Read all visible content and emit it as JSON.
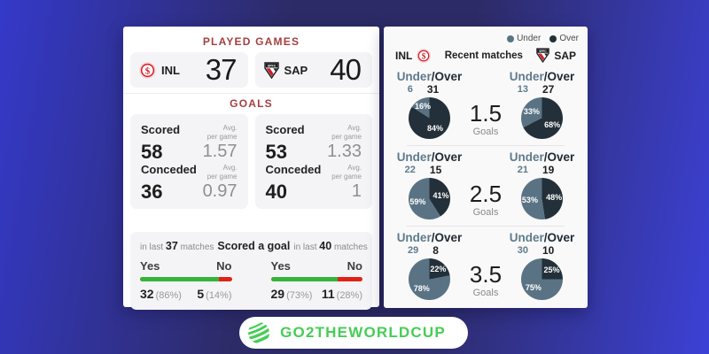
{
  "theme": {
    "under_color": "#5a7384",
    "over_color": "#233039",
    "yes_color": "#34b43a",
    "no_color": "#df2318",
    "accent_red": "#a43f3f",
    "brand_green": "#46cd55"
  },
  "left_card": {
    "played_games": {
      "title": "PLAYED GAMES",
      "teams": [
        {
          "abbr": "INL",
          "value": "37"
        },
        {
          "abbr": "SAP",
          "value": "40"
        }
      ]
    },
    "goals": {
      "title": "GOALS",
      "avg_line1": "Avg.",
      "avg_line2": "per game",
      "boxes": [
        {
          "scored_label": "Scored",
          "scored_value": "58",
          "scored_avg": "1.57",
          "conceded_label": "Conceded",
          "conceded_value": "36",
          "conceded_avg": "0.97"
        },
        {
          "scored_label": "Scored",
          "scored_value": "53",
          "scored_avg": "1.33",
          "conceded_label": "Conceded",
          "conceded_value": "40",
          "conceded_avg": "1"
        }
      ]
    },
    "scored_goal": {
      "title": "Scored a goal",
      "left_caption": {
        "prefix": "in last",
        "count": "37",
        "suffix": "matches"
      },
      "right_caption": {
        "prefix": "in last",
        "count": "40",
        "suffix": "matches"
      },
      "yes_label": "Yes",
      "no_label": "No",
      "cols": [
        {
          "yes_value": "32",
          "yes_pct": "(86%)",
          "no_value": "5",
          "no_pct": "(14%)",
          "yes_ratio": 86
        },
        {
          "yes_value": "29",
          "yes_pct": "(73%)",
          "no_value": "11",
          "no_pct": "(28%)",
          "yes_ratio": 73
        }
      ]
    }
  },
  "right_card": {
    "legend": {
      "under": "Under",
      "over": "Over"
    },
    "header": {
      "home": "INL",
      "title": "Recent matches",
      "away": "SAP"
    },
    "rows": [
      {
        "goals": "1.5",
        "goals_label": "Goals",
        "home": {
          "under_label": "Under",
          "over_label": "/Over",
          "under": "6",
          "over": "31",
          "under_pct": "16%",
          "over_pct": "84%",
          "over_share": 84
        },
        "away": {
          "under_label": "Under",
          "over_label": "/Over",
          "under": "13",
          "over": "27",
          "under_pct": "33%",
          "over_pct": "68%",
          "over_share": 67.5
        }
      },
      {
        "goals": "2.5",
        "goals_label": "Goals",
        "home": {
          "under_label": "Under",
          "over_label": "/Over",
          "under": "22",
          "over": "15",
          "under_pct": "59%",
          "over_pct": "41%",
          "over_share": 41
        },
        "away": {
          "under_label": "Under",
          "over_label": "/Over",
          "under": "21",
          "over": "19",
          "under_pct": "53%",
          "over_pct": "48%",
          "over_share": 47.5
        }
      },
      {
        "goals": "3.5",
        "goals_label": "Goals",
        "home": {
          "under_label": "Under",
          "over_label": "/Over",
          "under": "29",
          "over": "8",
          "under_pct": "78%",
          "over_pct": "22%",
          "over_share": 22
        },
        "away": {
          "under_label": "Under",
          "over_label": "/Over",
          "under": "30",
          "over": "10",
          "under_pct": "75%",
          "over_pct": "25%",
          "over_share": 25
        }
      }
    ]
  },
  "footer": {
    "brand": "GO2THEWORLDCUP"
  }
}
